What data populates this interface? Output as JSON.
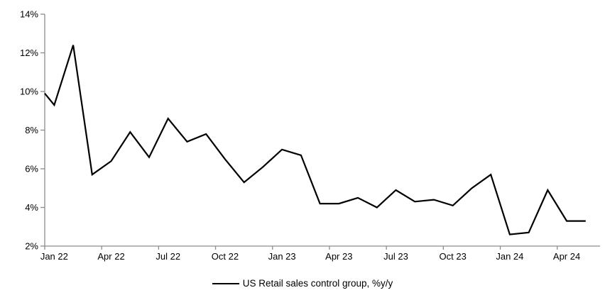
{
  "chart_data": {
    "type": "line",
    "title": "",
    "xlabel": "",
    "ylabel": "",
    "ylim": [
      2,
      14
    ],
    "grid": false,
    "legend_position": "bottom-center",
    "x": [
      "Jan 22",
      "Feb 22",
      "Mar 22",
      "Apr 22",
      "May 22",
      "Jun 22",
      "Jul 22",
      "Aug 22",
      "Sep 22",
      "Oct 22",
      "Nov 22",
      "Dec 22",
      "Jan 23",
      "Feb 23",
      "Mar 23",
      "Apr 23",
      "May 23",
      "Jun 23",
      "Jul 23",
      "Aug 23",
      "Sep 23",
      "Oct 23",
      "Nov 23",
      "Dec 23",
      "Jan 24",
      "Feb 24",
      "Mar 24",
      "Apr 24",
      "May 24"
    ],
    "series": [
      {
        "name": "US Retail sales control group, %y/y",
        "color": "#000000",
        "values": [
          9.3,
          12.4,
          5.7,
          6.4,
          7.9,
          6.6,
          8.6,
          7.4,
          7.8,
          6.5,
          5.3,
          6.1,
          7.0,
          6.7,
          4.2,
          4.2,
          4.5,
          4.0,
          4.9,
          4.3,
          4.4,
          4.1,
          5.0,
          5.7,
          2.6,
          2.7,
          4.9,
          3.3,
          3.3
        ]
      }
    ],
    "left_edge_entry_percent": 9.9,
    "y_tick_labels": [
      "2%",
      "4%",
      "6%",
      "8%",
      "10%",
      "12%",
      "14%"
    ],
    "x_tick_labels": [
      "Jan 22",
      "Apr 22",
      "Jul 22",
      "Oct 22",
      "Jan 23",
      "Apr 23",
      "Jul 23",
      "Oct 23",
      "Jan 24",
      "Apr 24"
    ],
    "axis_color": "#8c8c8c",
    "text_color": "#000000"
  },
  "legend": {
    "label": "US Retail sales control group, %y/y"
  }
}
